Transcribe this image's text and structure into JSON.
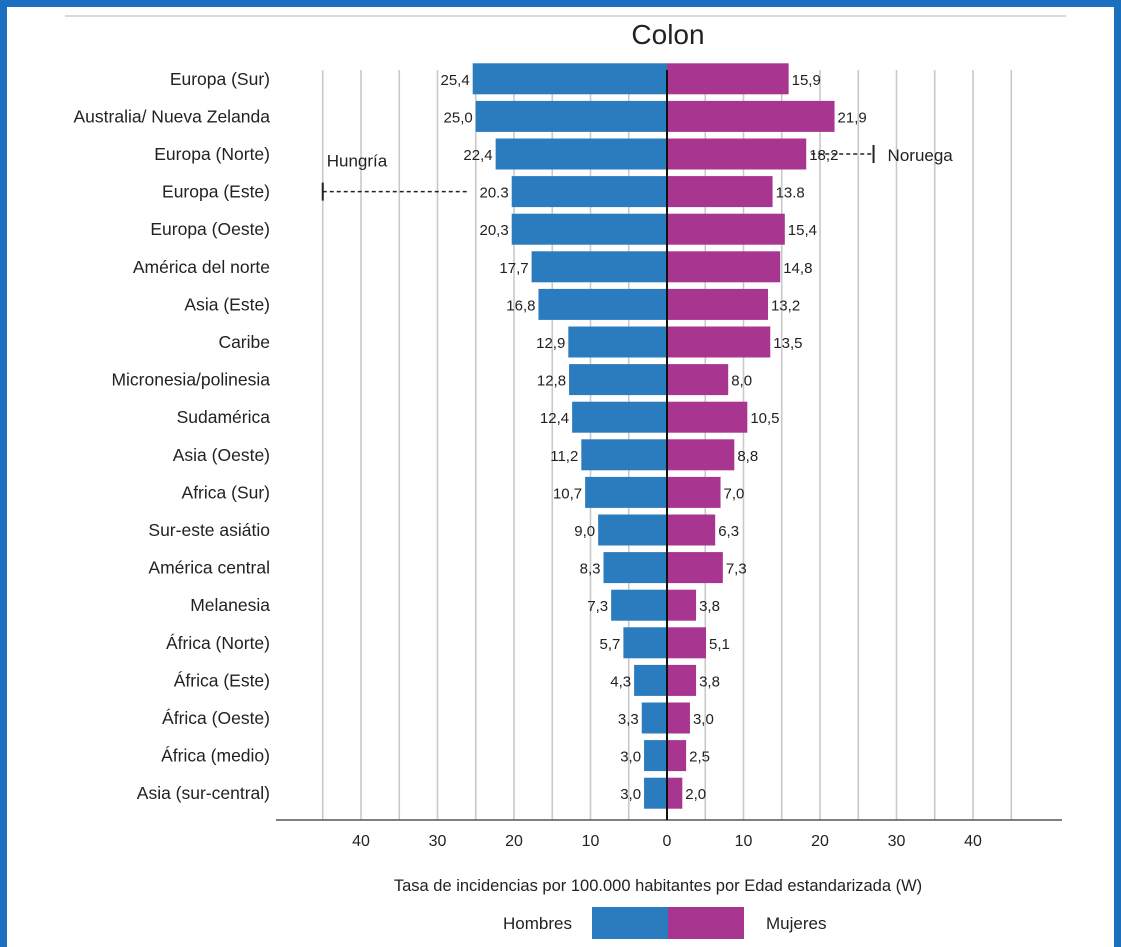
{
  "chart_data": {
    "type": "bar",
    "orientation": "horizontal-diverging",
    "title": "Colon",
    "xlabel": "Tasa de incidencias por 100.000 habitantes por Edad estandarizada (W)",
    "categories": [
      "Europa (Sur)",
      "Australia/ Nueva Zelanda",
      "Europa (Norte)",
      "Europa (Este)",
      "Europa (Oeste)",
      "América del norte",
      "Asia (Este)",
      "Caribe",
      "Micronesia/polinesia",
      "Sudamérica",
      "Asia (Oeste)",
      "Africa (Sur)",
      "Sur-este asiátio",
      "América central",
      "Melanesia",
      "África (Norte)",
      "África (Este)",
      "África (Oeste)",
      "África (medio)",
      "Asia (sur-central)"
    ],
    "series": [
      {
        "name": "Hombres",
        "color": "#2b7bbf",
        "values": [
          25.4,
          25.0,
          22.4,
          20.3,
          20.3,
          17.7,
          16.8,
          12.9,
          12.8,
          12.4,
          11.2,
          10.7,
          9.0,
          8.3,
          7.3,
          5.7,
          4.3,
          3.3,
          3.0,
          3.0
        ],
        "labels": [
          "25,4",
          "25,0",
          "22,4",
          "20.3",
          "20,3",
          "17,7",
          "16,8",
          "12,9",
          "12,8",
          "12,4",
          "11,2",
          "10,7",
          "9,0",
          "8,3",
          "7,3",
          "5,7",
          "4,3",
          "3,3",
          "3,0",
          "3,0"
        ]
      },
      {
        "name": "Mujeres",
        "color": "#a8358f",
        "values": [
          15.9,
          21.9,
          18.2,
          13.8,
          15.4,
          14.8,
          13.2,
          13.5,
          8.0,
          10.5,
          8.8,
          7.0,
          6.3,
          7.3,
          3.8,
          5.1,
          3.8,
          3.0,
          2.5,
          2.0
        ],
        "labels": [
          "15,9",
          "21,9",
          "18,2",
          "13.8",
          "15,4",
          "14,8",
          "13,2",
          "13,5",
          "8,0",
          "10,5",
          "8,8",
          "7,0",
          "6,3",
          "7,3",
          "3,8",
          "5,1",
          "3,8",
          "3,0",
          "2,5",
          "2,0"
        ]
      }
    ],
    "xlim": [
      -50,
      50
    ],
    "xticks": [
      -40,
      -30,
      -20,
      -10,
      0,
      10,
      20,
      30,
      40
    ],
    "xtick_labels": [
      "40",
      "30",
      "20",
      "10",
      "0",
      "10",
      "20",
      "30",
      "40"
    ],
    "gridlines": [
      -45,
      -40,
      -35,
      -30,
      -25,
      -20,
      -15,
      -10,
      -5,
      5,
      10,
      15,
      20,
      25,
      30,
      35,
      40,
      45
    ],
    "grid": true,
    "legend_position": "bottom-center",
    "annotations": [
      {
        "text": "Hungría",
        "category": "Europa (Este)",
        "side": "Hombres",
        "value": 45
      },
      {
        "text": "Noruega",
        "category": "Europa (Norte)",
        "side": "Mujeres",
        "value": 27
      }
    ]
  }
}
